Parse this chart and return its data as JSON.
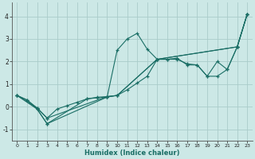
{
  "xlabel": "Humidex (Indice chaleur)",
  "bg_color": "#cce8e6",
  "grid_color": "#aaccca",
  "line_color": "#1a6e65",
  "xlim": [
    -0.5,
    23.5
  ],
  "ylim": [
    -1.5,
    4.6
  ],
  "yticks": [
    -1,
    0,
    1,
    2,
    3,
    4
  ],
  "xticks": [
    0,
    1,
    2,
    3,
    4,
    5,
    6,
    7,
    8,
    9,
    10,
    11,
    12,
    13,
    14,
    15,
    16,
    17,
    18,
    19,
    20,
    21,
    22,
    23
  ],
  "lines": [
    {
      "x": [
        0,
        1,
        2,
        3,
        7,
        8,
        9,
        10,
        11,
        12,
        13,
        14,
        15,
        16,
        17,
        18,
        19,
        20,
        21,
        22,
        23
      ],
      "y": [
        0.5,
        0.3,
        -0.1,
        -0.75,
        0.35,
        0.4,
        0.43,
        2.5,
        3.0,
        3.25,
        2.55,
        2.1,
        2.1,
        2.1,
        1.9,
        1.85,
        1.35,
        2.0,
        1.65,
        2.65,
        4.1
      ]
    },
    {
      "x": [
        0,
        1,
        2,
        3,
        4,
        5,
        6,
        7,
        8,
        9,
        10,
        11,
        12,
        13,
        14,
        15,
        16,
        17,
        18,
        19,
        20,
        21,
        22,
        23
      ],
      "y": [
        0.5,
        0.3,
        -0.05,
        -0.5,
        -0.1,
        0.05,
        0.2,
        0.35,
        0.42,
        0.45,
        0.5,
        0.75,
        1.05,
        1.35,
        2.1,
        2.1,
        2.15,
        1.85,
        1.85,
        1.35,
        1.35,
        1.65,
        2.65,
        4.1
      ]
    },
    {
      "x": [
        0,
        2,
        3,
        9,
        10,
        14,
        22,
        23
      ],
      "y": [
        0.5,
        -0.1,
        -0.75,
        0.43,
        0.5,
        2.1,
        2.65,
        4.1
      ]
    },
    {
      "x": [
        0,
        2,
        3,
        9,
        10,
        14,
        22,
        23
      ],
      "y": [
        0.5,
        -0.05,
        -0.5,
        0.45,
        0.5,
        2.1,
        2.65,
        4.1
      ]
    }
  ]
}
